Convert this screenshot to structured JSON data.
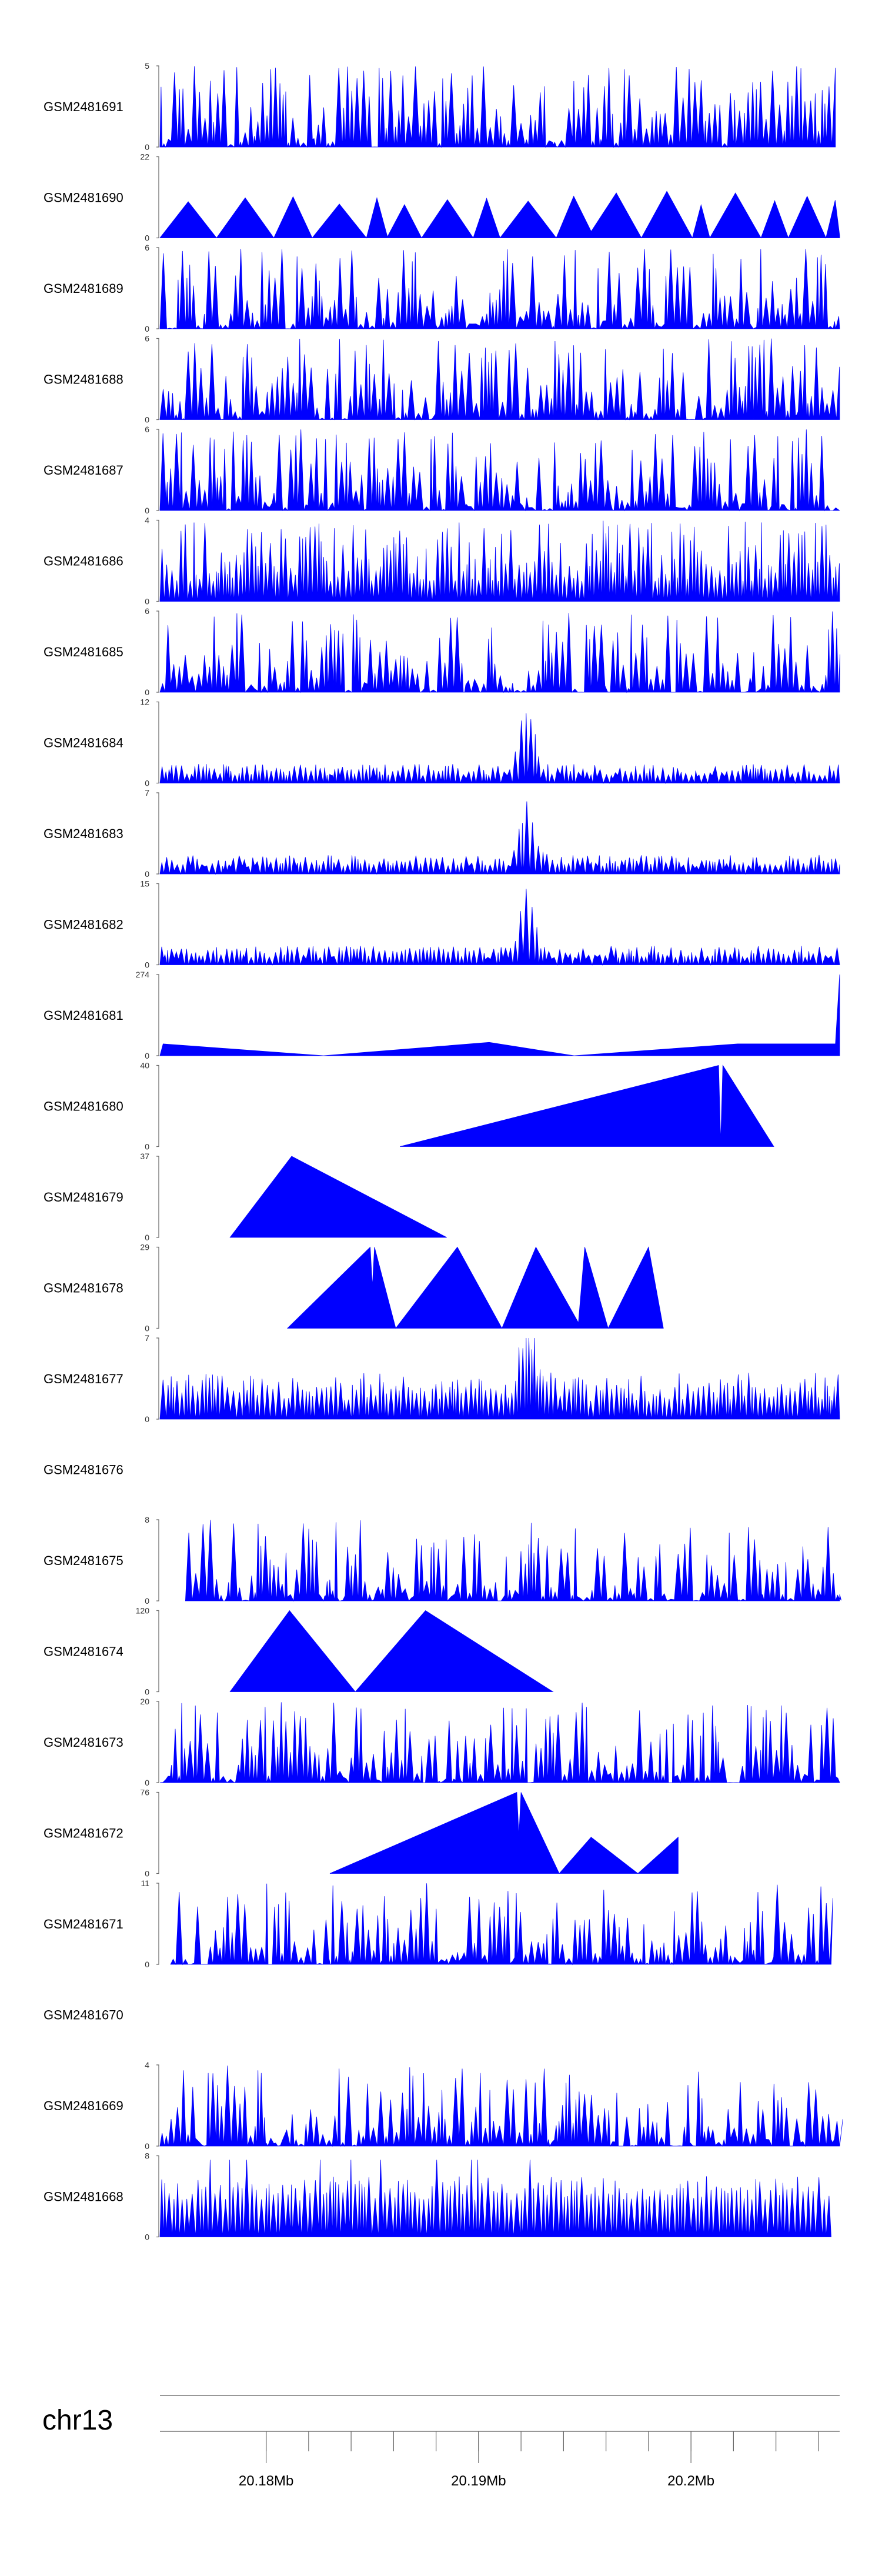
{
  "chart_data": {
    "type": "area",
    "chromosome": "chr13",
    "xlim": [
      20175000,
      20207000
    ],
    "area_color": "#0000ff",
    "x_axis": {
      "labels": [
        "20.18Mb",
        "20.19Mb",
        "20.2Mb"
      ],
      "label_positions": [
        20180000,
        20190000,
        20200000
      ],
      "minor_ticks": [
        20180000,
        20182000,
        20184000,
        20186000,
        20188000,
        20190000,
        20192000,
        20194000,
        20196000,
        20198000,
        20200000,
        20202000,
        20204000,
        20206000
      ]
    },
    "tracks": [
      {
        "name": "GSM2481691",
        "ymax": "5",
        "min_label": "0",
        "ymax_value": 5
      },
      {
        "name": "GSM2481690",
        "ymax": "22",
        "min_label": "0",
        "ymax_value": 22
      },
      {
        "name": "GSM2481689",
        "ymax": "6",
        "min_label": "0",
        "ymax_value": 6
      },
      {
        "name": "GSM2481688",
        "ymax": "6",
        "min_label": "0",
        "ymax_value": 6
      },
      {
        "name": "GSM2481687",
        "ymax": "6",
        "min_label": "0",
        "ymax_value": 6
      },
      {
        "name": "GSM2481686",
        "ymax": "4",
        "min_label": "0",
        "ymax_value": 4
      },
      {
        "name": "GSM2481685",
        "ymax": "6",
        "min_label": "0",
        "ymax_value": 6
      },
      {
        "name": "GSM2481684",
        "ymax": "12",
        "min_label": "0",
        "ymax_value": 12
      },
      {
        "name": "GSM2481683",
        "ymax": "7",
        "min_label": "0",
        "ymax_value": 7
      },
      {
        "name": "GSM2481682",
        "ymax": "15",
        "min_label": "0",
        "ymax_value": 15
      },
      {
        "name": "GSM2481681",
        "ymax": "274",
        "min_label": "0",
        "ymax_value": 274
      },
      {
        "name": "GSM2481680",
        "ymax": "40",
        "min_label": "0",
        "ymax_value": 40
      },
      {
        "name": "GSM2481679",
        "ymax": "37",
        "min_label": "0",
        "ymax_value": 37
      },
      {
        "name": "GSM2481678",
        "ymax": "29",
        "min_label": "0",
        "ymax_value": 29
      },
      {
        "name": "GSM2481677",
        "ymax": "7",
        "min_label": "0",
        "ymax_value": 7
      },
      {
        "name": "GSM2481676",
        "ymax": "",
        "min_label": "",
        "ymax_value": 0
      },
      {
        "name": "GSM2481675",
        "ymax": "8",
        "min_label": "0",
        "ymax_value": 8
      },
      {
        "name": "GSM2481674",
        "ymax": "120",
        "min_label": "0",
        "ymax_value": 120
      },
      {
        "name": "GSM2481673",
        "ymax": "20",
        "min_label": "0",
        "ymax_value": 20
      },
      {
        "name": "GSM2481672",
        "ymax": "76",
        "min_label": "0",
        "ymax_value": 76
      },
      {
        "name": "GSM2481671",
        "ymax": "11",
        "min_label": "0",
        "ymax_value": 11
      },
      {
        "name": "GSM2481670",
        "ymax": "",
        "min_label": "",
        "ymax_value": 0
      },
      {
        "name": "GSM2481669",
        "ymax": "4",
        "min_label": "0",
        "ymax_value": 4
      },
      {
        "name": "GSM2481668",
        "ymax": "8",
        "min_label": "0",
        "ymax_value": 8
      }
    ],
    "explicit_series": {
      "GSM2481681": [
        [
          20175000,
          0
        ],
        [
          20175150,
          40
        ],
        [
          20182700,
          0
        ],
        [
          20190500,
          45
        ],
        [
          20194500,
          0
        ],
        [
          20202200,
          40
        ],
        [
          20206800,
          40
        ],
        [
          20207000,
          274
        ]
      ],
      "GSM2481680": [
        [
          20186300,
          0
        ],
        [
          20201300,
          40
        ],
        [
          20201400,
          2
        ],
        [
          20201500,
          40
        ],
        [
          20203900,
          0
        ]
      ],
      "GSM2481679": [
        [
          20178300,
          0
        ],
        [
          20181200,
          37
        ],
        [
          20188500,
          0
        ]
      ],
      "GSM2481678": [
        [
          20181000,
          0
        ],
        [
          20184900,
          29
        ],
        [
          20185000,
          15
        ],
        [
          20185100,
          29
        ],
        [
          20186100,
          0
        ],
        [
          20189000,
          29
        ],
        [
          20191100,
          0
        ],
        [
          20192700,
          29
        ],
        [
          20194700,
          2
        ],
        [
          20195000,
          29
        ],
        [
          20196100,
          0
        ],
        [
          20198000,
          29
        ],
        [
          20198700,
          0
        ]
      ],
      "GSM2481674": [
        [
          20178300,
          0
        ],
        [
          20181100,
          120
        ],
        [
          20184200,
          0
        ],
        [
          20187500,
          120
        ],
        [
          20193500,
          0
        ]
      ],
      "GSM2481672": [
        [
          20183000,
          0
        ],
        [
          20191800,
          76
        ],
        [
          20191900,
          35
        ],
        [
          20192000,
          76
        ],
        [
          20193800,
          0
        ],
        [
          20195300,
          34
        ],
        [
          20197500,
          0
        ],
        [
          20199400,
          34
        ]
      ]
    },
    "peak_profiles": {
      "GSM2481691": {
        "start": 20175000,
        "end": 20206800,
        "profile": "uniform",
        "seed": 91
      },
      "GSM2481690": {
        "start": 20175000,
        "end": 20207000,
        "profile": "sparse",
        "seed": 90
      },
      "GSM2481689": {
        "start": 20175000,
        "end": 20207000,
        "profile": "uniform",
        "seed": 89
      },
      "GSM2481688": {
        "start": 20175000,
        "end": 20207000,
        "profile": "uniform",
        "seed": 88
      },
      "GSM2481687": {
        "start": 20175000,
        "end": 20207000,
        "profile": "uniform",
        "seed": 87
      },
      "GSM2481686": {
        "start": 20175000,
        "end": 20207000,
        "profile": "dense",
        "seed": 86
      },
      "GSM2481685": {
        "start": 20175000,
        "end": 20207000,
        "profile": "uniform",
        "seed": 85
      },
      "GSM2481684": {
        "start": 20175000,
        "end": 20207000,
        "profile": "hotspot",
        "seed": 84
      },
      "GSM2481683": {
        "start": 20175000,
        "end": 20207000,
        "profile": "hotspot",
        "seed": 83
      },
      "GSM2481682": {
        "start": 20175000,
        "end": 20207000,
        "profile": "hotspot",
        "seed": 82
      },
      "GSM2481677": {
        "start": 20175000,
        "end": 20207000,
        "profile": "hotspot-soft",
        "seed": 77
      },
      "GSM2481675": {
        "start": 20176200,
        "end": 20207000,
        "profile": "uniform",
        "seed": 75
      },
      "GSM2481673": {
        "start": 20175000,
        "end": 20207000,
        "profile": "uniform",
        "seed": 73
      },
      "GSM2481671": {
        "start": 20175500,
        "end": 20206600,
        "profile": "uniform",
        "seed": 71
      },
      "GSM2481669": {
        "start": 20175000,
        "end": 20207000,
        "profile": "uniform",
        "seed": 69
      },
      "GSM2481668": {
        "start": 20175000,
        "end": 20206600,
        "profile": "comb",
        "seed": 68
      }
    }
  }
}
